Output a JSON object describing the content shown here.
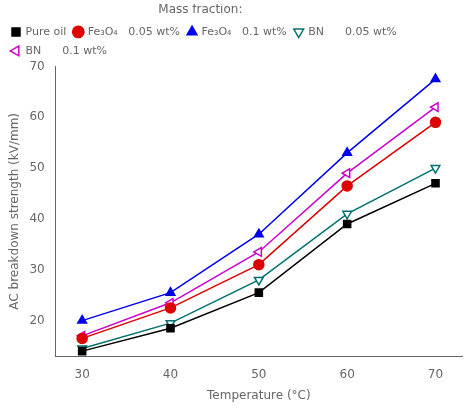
{
  "chart_data": {
    "type": "line",
    "xlabel": "Temperature (°C)",
    "ylabel": "AC breakdown strength (kV/mm)",
    "x": [
      30,
      40,
      50,
      60,
      70
    ],
    "series": [
      {
        "name": "Pure oil",
        "color": "#000000",
        "marker": "square",
        "values": [
          14,
          18.5,
          25.5,
          39,
          47
        ]
      },
      {
        "name": "Fe₃O₄   0.05 wt%",
        "color": "#dd0000",
        "marker": "circle",
        "values": [
          16.5,
          22.5,
          31,
          46.5,
          59
        ]
      },
      {
        "name": "Fe₃O₄   0.1 wt%",
        "color": "#0000ee",
        "marker": "triangle-up",
        "values": [
          20,
          25.5,
          37,
          53,
          67.5
        ]
      },
      {
        "name": "BN      0.05 wt%",
        "color": "#007070",
        "marker": "open-triangle-down",
        "values": [
          14.5,
          19.5,
          28,
          41,
          50
        ]
      },
      {
        "name": "BN      0.1 wt%",
        "color": "#cc00cc",
        "marker": "open-triangle-left",
        "values": [
          17,
          23.5,
          33.5,
          49,
          62
        ]
      }
    ],
    "legend_title": "Mass fraction:",
    "legend": "top",
    "xlim": [
      27,
      73
    ],
    "xticks": [
      30,
      40,
      50,
      60,
      70
    ],
    "ylim": [
      13,
      70
    ],
    "yticks": [
      20,
      30,
      40,
      50,
      60,
      70
    ],
    "grid": false
  }
}
